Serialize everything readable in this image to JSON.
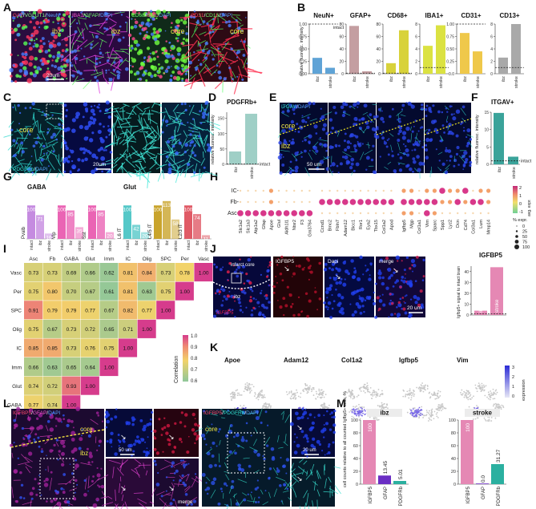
{
  "panel_labels": [
    "A",
    "B",
    "C",
    "D",
    "E",
    "F",
    "G",
    "H",
    "I",
    "J",
    "K",
    "L",
    "M"
  ],
  "panelA": {
    "titles": [
      [
        {
          "t": "GAT",
          "c": "#ff4a5e"
        },
        {
          "t": "/",
          "c": "#ffffff"
        },
        {
          "t": "VGLUT1",
          "c": "#7dff7d"
        },
        {
          "t": "/",
          "c": "#ffffff"
        },
        {
          "t": "NeuN",
          "c": "#5aa8ff"
        }
      ],
      [
        {
          "t": "IBA1",
          "c": "#ff5ad2"
        },
        {
          "t": "/",
          "c": "#ffffff"
        },
        {
          "t": "GFAP",
          "c": "#6dff6d"
        },
        {
          "t": "/",
          "c": "#ffffff"
        },
        {
          "t": "DAPI",
          "c": "#5aa8ff"
        }
      ],
      [
        {
          "t": "CD68",
          "c": "#6dff6d"
        },
        {
          "t": "/",
          "c": "#ffffff"
        },
        {
          "t": "IBA1",
          "c": "#ff5a8e"
        },
        {
          "t": "/",
          "c": "#ffffff"
        },
        {
          "t": "DAPI",
          "c": "#5aa8ff"
        }
      ],
      [
        {
          "t": "CD31",
          "c": "#ff4a5e"
        },
        {
          "t": "/",
          "c": "#ffffff"
        },
        {
          "t": "CD13",
          "c": "#6dff6d"
        },
        {
          "t": "/",
          "c": "#ffffff"
        },
        {
          "t": "DAPI",
          "c": "#5aa8ff"
        }
      ]
    ],
    "region_labels": [
      "ibz",
      "ibz",
      "core",
      "core"
    ],
    "scalebar": "20um"
  },
  "panelB": {
    "ylabel": "relative fluoresc. intensity",
    "intact_label": "intact",
    "charts": [
      {
        "title": "NeuN+",
        "color": "#5fa3d6",
        "ymax": 1.0,
        "ticks": [
          "0.00",
          "0.25",
          "0.50",
          "0.75",
          "1.00"
        ],
        "intact": 1.0,
        "values": [
          0.32,
          0.12
        ],
        "categories": [
          "ibz",
          "stroke"
        ]
      },
      {
        "title": "GFAP+",
        "color": "#c49ea1",
        "ymax": 80,
        "ticks": [
          "0",
          "20",
          "40",
          "60",
          "80"
        ],
        "intact": 1,
        "values": [
          77,
          4
        ],
        "categories": [
          "ibz",
          "stroke"
        ]
      },
      {
        "title": "CD68+",
        "color": "#d8d23a",
        "ymax": 80,
        "ticks": [
          "0",
          "20",
          "40",
          "60",
          "80"
        ],
        "intact": 1,
        "values": [
          17,
          70
        ],
        "categories": [
          "ibz",
          "stroke"
        ]
      },
      {
        "title": "IBA1+",
        "color": "#dbe242",
        "ymax": 8,
        "ticks": [
          "0",
          "2",
          "4",
          "6",
          "8"
        ],
        "intact": 1,
        "values": [
          4.5,
          7.8
        ],
        "categories": [
          "ibz",
          "stroke"
        ]
      },
      {
        "title": "CD31+",
        "color": "#efc84a",
        "ymax": 1.0,
        "ticks": [
          "0.0",
          "0.25",
          "0.50",
          "0.75",
          "1.00"
        ],
        "intact": 1.0,
        "values": [
          0.82,
          0.45
        ],
        "categories": [
          "ibz",
          "stroke"
        ]
      },
      {
        "title": "CD13+",
        "color": "#a9a9a9",
        "ymax": 8,
        "ticks": [
          "0",
          "2",
          "4",
          "6",
          "8"
        ],
        "intact": 1,
        "values": [
          2.6,
          8.0
        ],
        "categories": [
          "ibz",
          "stroke"
        ]
      }
    ]
  },
  "panelC": {
    "title": [
      {
        "t": "PDGFRb",
        "c": "#33e0d0"
      },
      {
        "t": "/",
        "c": "#ffffff"
      },
      {
        "t": "DAPI",
        "c": "#5aa8ff"
      }
    ],
    "region": "core",
    "scalebar": "20um"
  },
  "panelD": {
    "title": "PDGFRb+",
    "ylabel": "relative fluoresc. intensity",
    "ymax": 170,
    "ticks": [
      "0",
      "50",
      "100",
      "150"
    ],
    "intact": 1,
    "intact_label": "intact",
    "categories": [
      "ibz",
      "stroke"
    ],
    "values": [
      42,
      165
    ],
    "colors": [
      "#9fcfc6",
      "#9fcfc6"
    ]
  },
  "panelE": {
    "title": [
      {
        "t": "ITGAV",
        "c": "#33e0d0"
      },
      {
        "t": "/",
        "c": "#ffffff"
      },
      {
        "t": "DAPI",
        "c": "#5aa8ff"
      }
    ],
    "labels": [
      "core",
      "ibz"
    ],
    "scalebar": "50 um"
  },
  "panelF": {
    "title": "ITGAV+",
    "ylabel": "relative fluoresc. intensity",
    "ymax": 15,
    "ticks": [
      "0",
      "5",
      "10",
      "15"
    ],
    "intact": 1,
    "intact_label": "intact",
    "categories": [
      "ibz",
      "stroke"
    ],
    "values": [
      14.8,
      2.2
    ],
    "colors": [
      "#3aa39a",
      "#3aa39a"
    ]
  },
  "panelG": {
    "groups": [
      {
        "title": "GABA",
        "subgroups": [
          {
            "name": "Pvalb",
            "values": [
              100,
              71,
              16
            ],
            "color": "#c58be0"
          },
          {
            "name": "Vip",
            "values": [
              100,
              85,
              35
            ],
            "color": "#ea64b4"
          },
          {
            "name": "Sst",
            "values": [
              100,
              85,
              20
            ],
            "color": "#ea64b4"
          }
        ]
      },
      {
        "title": "Glut",
        "subgroups": [
          {
            "name": "L6 IT",
            "values": [
              100,
              42,
              20
            ],
            "color": "#55c8c8"
          },
          {
            "name": "L4/5 IT",
            "values": [
              100,
              113,
              58
            ],
            "color": "#c9a42c"
          },
          {
            "name": "L2/3 IT",
            "values": [
              100,
              74,
              11
            ],
            "color": "#e05a66"
          }
        ]
      }
    ],
    "categories": [
      "intact",
      "ibz",
      "stroke"
    ]
  },
  "panelH": {
    "rows": [
      "IC",
      "Fb",
      "Asc"
    ],
    "genes": [
      "Slc1a2",
      "Slc1a3",
      "Atp1a2",
      "Gfap",
      "Apoe",
      "Glul",
      "Aldh1l1",
      "Ntsr2",
      "F3",
      "Gm3764",
      "Ccnd1",
      "Bmc2",
      "Fbln7",
      "Adam12",
      "Bicc1",
      "Ror1",
      "Eya2",
      "Tbx15",
      "Col1a2",
      "Apod",
      "Igfbp5",
      "Mgp",
      "Col1a1",
      "Vim",
      "Sparc",
      "Spp1",
      "Lyz2",
      "Dcn",
      "Cd74",
      "Col3a1",
      "Lum",
      "Mmp14"
    ],
    "expr_label": "avg. expr.",
    "expr_ticks": [
      "2",
      "1",
      "0",
      "-1"
    ],
    "pct_label": "% expr.",
    "pct_ticks": [
      "0",
      "25",
      "50",
      "75",
      "100"
    ]
  },
  "panelI": {
    "labels": [
      "Asc",
      "Fb",
      "GABA",
      "Glut",
      "Imm",
      "IC",
      "Olig",
      "SPC",
      "Per",
      "Vasc"
    ],
    "rows": [
      {
        "name": "Vasc",
        "values": [
          0.73,
          0.73,
          0.69,
          0.66,
          0.62,
          0.81,
          0.84,
          0.73,
          0.78,
          1.0
        ]
      },
      {
        "name": "Per",
        "values": [
          0.75,
          0.8,
          0.7,
          0.67,
          0.61,
          0.81,
          0.63,
          0.75,
          1.0
        ]
      },
      {
        "name": "SPC",
        "values": [
          0.91,
          0.79,
          0.79,
          0.77,
          0.67,
          0.82,
          0.77,
          1.0
        ]
      },
      {
        "name": "Olig",
        "values": [
          0.75,
          0.67,
          0.73,
          0.72,
          0.65,
          0.71,
          1.0
        ]
      },
      {
        "name": "IC",
        "values": [
          0.85,
          0.85,
          0.73,
          0.76,
          0.75,
          1.0
        ]
      },
      {
        "name": "Imm",
        "values": [
          0.66,
          0.63,
          0.65,
          0.64,
          1.0
        ]
      },
      {
        "name": "Glut",
        "values": [
          0.74,
          0.72,
          0.93,
          1.0
        ]
      },
      {
        "name": "GABA",
        "values": [
          0.77,
          0.74,
          1.0
        ]
      },
      {
        "name": "Fb",
        "values": [
          0.81,
          1.0
        ]
      },
      {
        "name": "Asc",
        "values": [
          1.0
        ]
      }
    ],
    "colorbar_label": "Correlation",
    "colorbar_ticks": [
      "1.0",
      "0.9",
      "0.8",
      "0.7",
      "0.6"
    ]
  },
  "panelJ": {
    "labels": [
      "infarct core",
      "IGFBP5",
      "Dapi",
      "merge",
      "ibz",
      "IGFBP5"
    ],
    "scalebar": "20 um",
    "title": "IGFBP5",
    "ylabel": "Igfbp5+ signal to intact brain",
    "ymax": 45,
    "ticks": [
      "0",
      "10",
      "20",
      "30",
      "40"
    ],
    "categories": [
      "ibz",
      "stroke"
    ],
    "values": [
      4,
      44
    ],
    "colors": [
      "#e588b4",
      "#e588b4"
    ]
  },
  "panelK": {
    "genes": [
      "Apoe",
      "Adam12",
      "Col1a2",
      "Igfbp5",
      "Vim"
    ],
    "expr_label": "expression",
    "expr_ticks": [
      "3",
      "2",
      "1",
      "0"
    ]
  },
  "panelL": {
    "title1": [
      {
        "t": "IGFBP5",
        "c": "#ff4a6e"
      },
      {
        "t": "/",
        "c": "#ffffff"
      },
      {
        "t": "GFAP",
        "c": "#ff5ad2"
      },
      {
        "t": "/",
        "c": "#ffffff"
      },
      {
        "t": "DAPI",
        "c": "#5aa8ff"
      }
    ],
    "title2": [
      {
        "t": "IGFBP5",
        "c": "#ff4a6e"
      },
      {
        "t": "/",
        "c": "#ffffff"
      },
      {
        "t": "PDGFRb",
        "c": "#33e0d0"
      },
      {
        "t": "/",
        "c": "#ffffff"
      },
      {
        "t": "DAPI",
        "c": "#5aa8ff"
      }
    ],
    "labels": [
      "core",
      "ibz",
      "core"
    ],
    "scalebars": [
      "50 um",
      "20 um"
    ],
    "merge": "merge"
  },
  "panelM": {
    "ylabel": "cell counts relative to all counted Igfbp5+ cells, %",
    "ymax": 100,
    "ticks": [
      "0",
      "20",
      "40",
      "60",
      "80",
      "100"
    ],
    "charts": [
      {
        "title": "ibz",
        "categories": [
          "IGFBP5",
          "GFAP",
          "PDGFRb"
        ],
        "values": [
          100,
          13.45,
          5.01
        ],
        "labels": [
          "100",
          "13.45",
          "5.01"
        ],
        "colors": [
          "#e588b4",
          "#6a2ec4",
          "#2bb0a0"
        ]
      },
      {
        "title": "stroke",
        "categories": [
          "IGFBP5",
          "GFAP",
          "PDGFRb"
        ],
        "values": [
          100,
          0.0,
          31.27
        ],
        "labels": [
          "100",
          "0.0",
          "31.27"
        ],
        "colors": [
          "#e588b4",
          "#6a2ec4",
          "#2bb0a0"
        ]
      }
    ]
  }
}
